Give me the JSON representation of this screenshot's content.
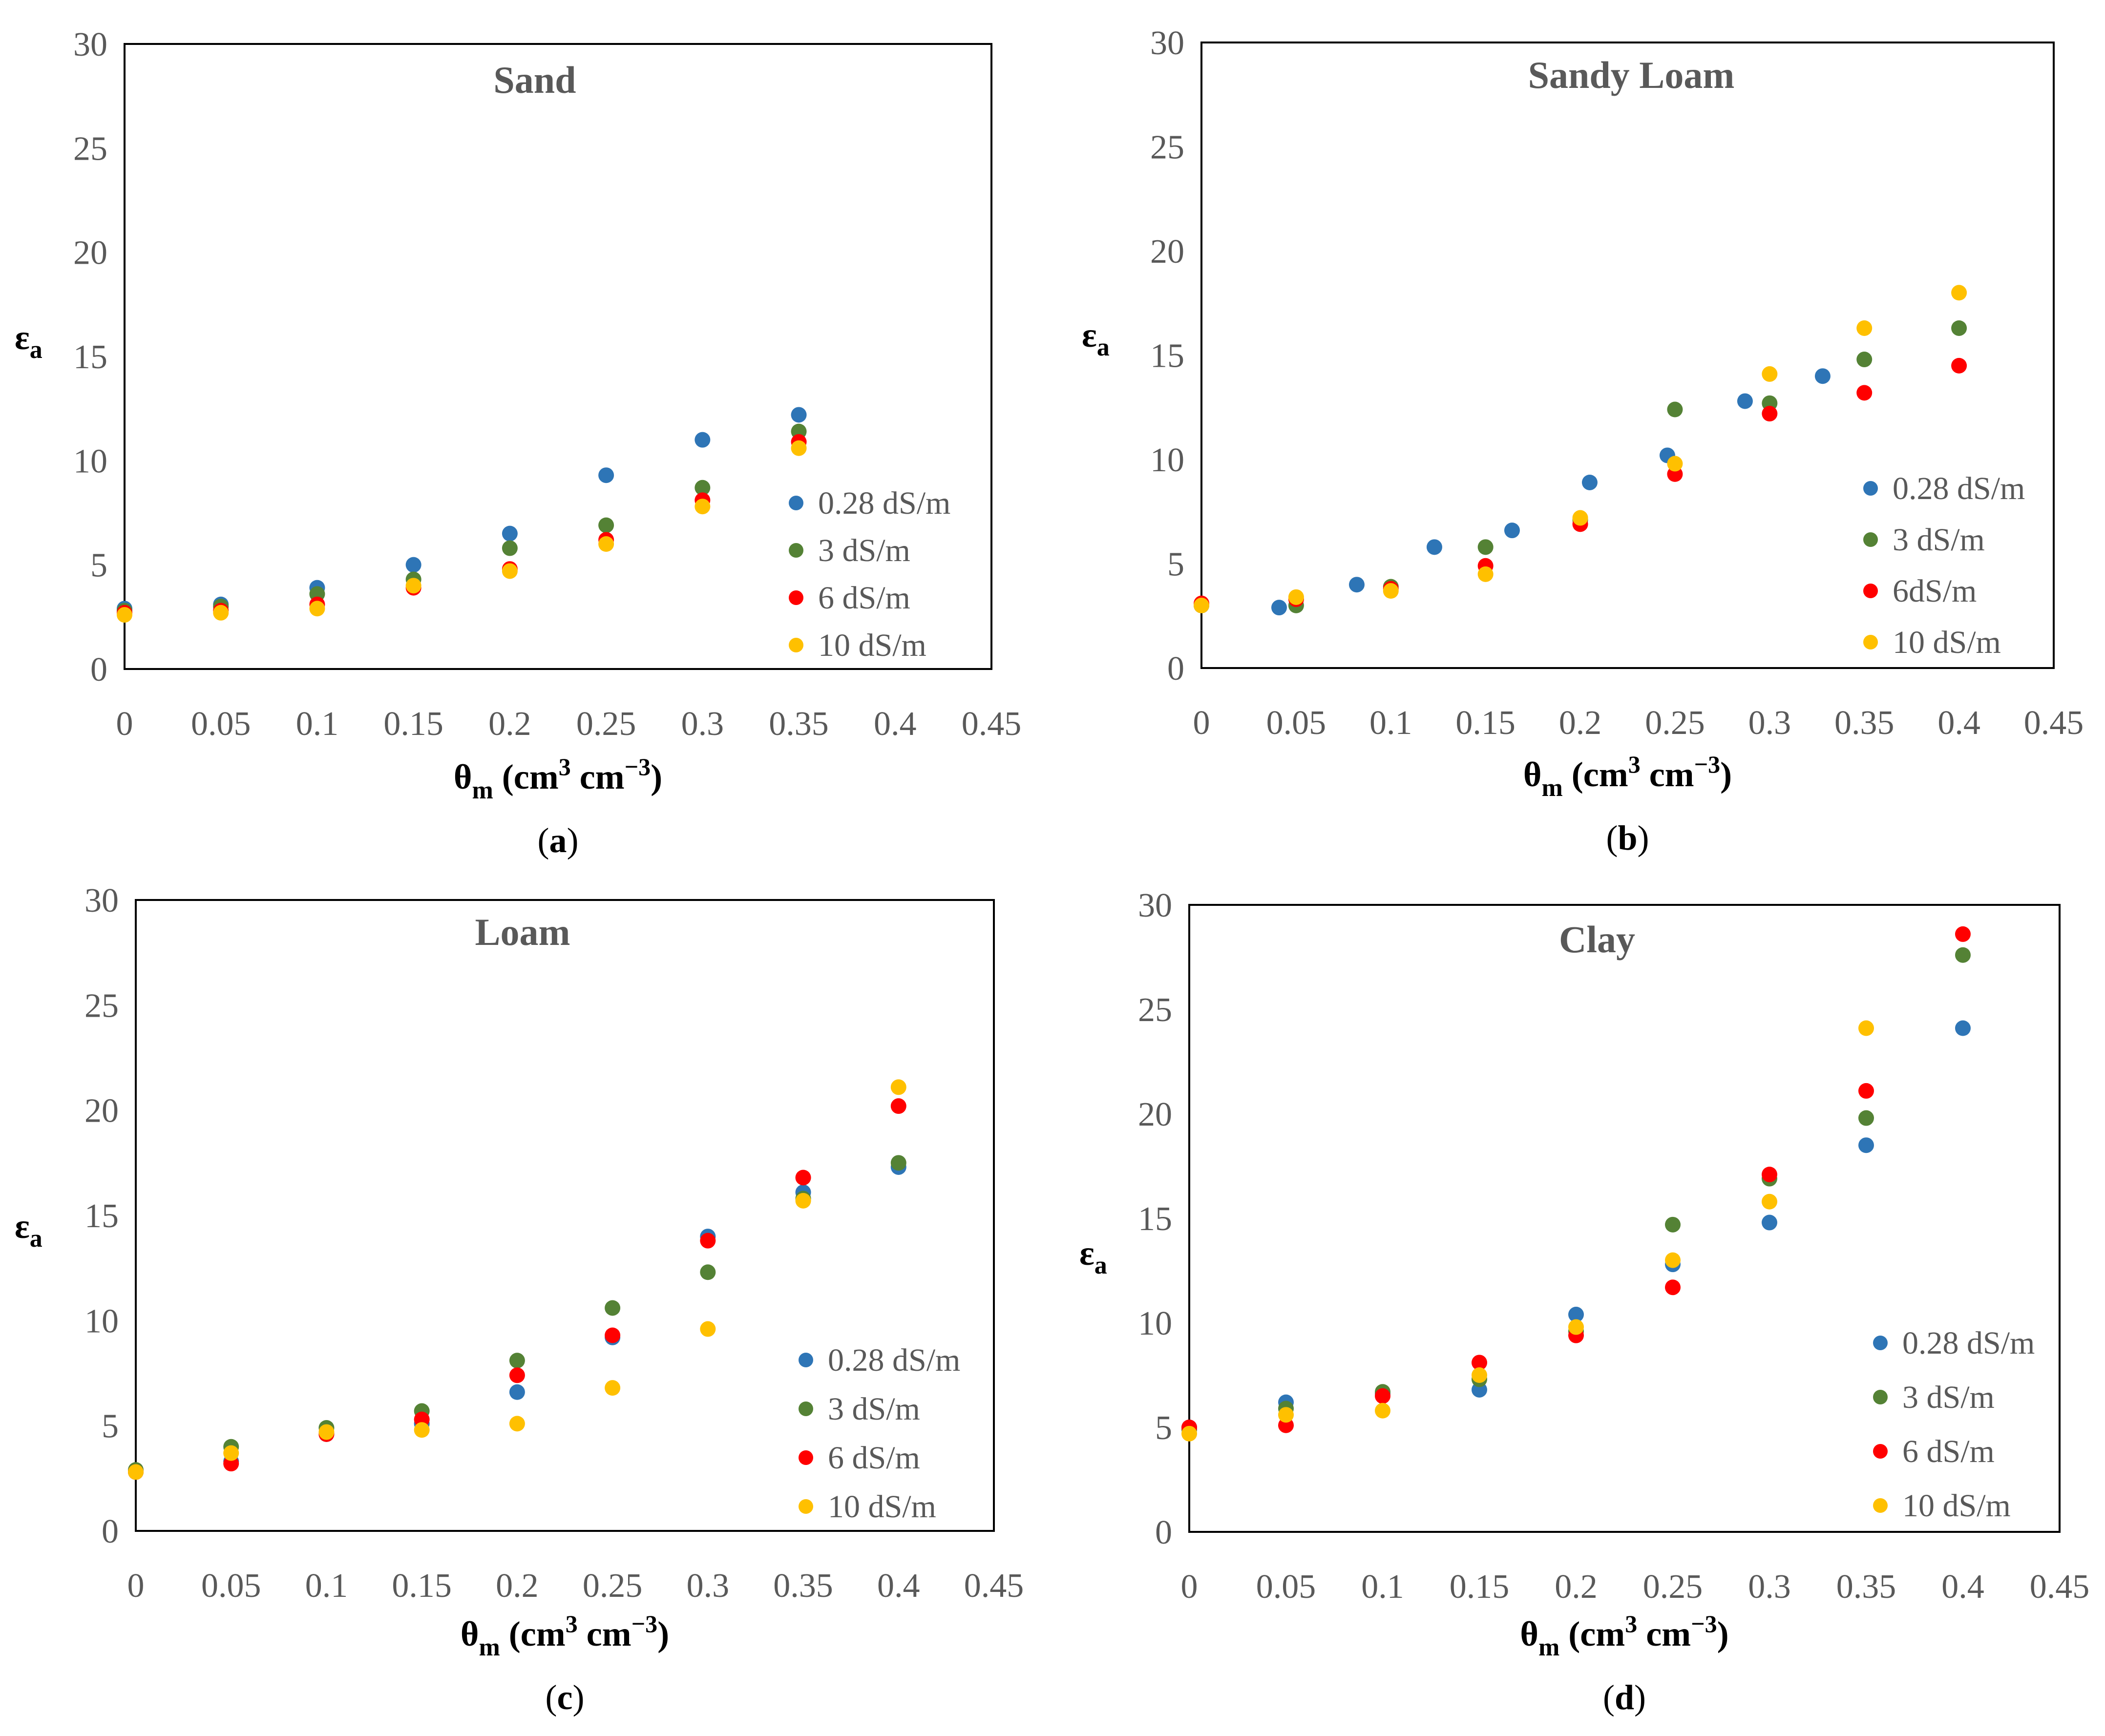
{
  "colors": {
    "0.28 dS/m": "#2e75b6",
    "3 dS/m": "#548235",
    "6 dS/m": "#ff0000",
    "10 dS/m": "#ffc000",
    "plot_border": "#000000",
    "tick_text": "#595959"
  },
  "chart_data": [
    {
      "type": "scatter",
      "panel": "a",
      "title": "Sand",
      "xlabel": {
        "symbol": "θ",
        "sub": "m",
        "unit_open": " (cm",
        "sup1": "3",
        "unit_mid": " cm",
        "sup2": "−3",
        "unit_close": ")"
      },
      "ylabel": {
        "symbol": "ε",
        "sub": "a"
      },
      "xlim": [
        0,
        0.45
      ],
      "ylim": [
        0,
        30
      ],
      "xticks": [
        "0",
        "0.05",
        "0.1",
        "0.15",
        "0.2",
        "0.25",
        "0.3",
        "0.35",
        "0.4",
        "0.45"
      ],
      "yticks": [
        "0",
        "5",
        "10",
        "15",
        "20",
        "25",
        "30"
      ],
      "legend_position": "right",
      "series": [
        {
          "name": "0.28 dS/m",
          "color_key": "0.28 dS/m",
          "points": [
            [
              0,
              2.9
            ],
            [
              0.05,
              3.1
            ],
            [
              0.1,
              3.9
            ],
            [
              0.15,
              5.0
            ],
            [
              0.2,
              6.5
            ],
            [
              0.25,
              9.3
            ],
            [
              0.3,
              11.0
            ],
            [
              0.35,
              12.2
            ]
          ]
        },
        {
          "name": "3 dS/m",
          "color_key": "3 dS/m",
          "points": [
            [
              0,
              2.8
            ],
            [
              0.05,
              3.0
            ],
            [
              0.1,
              3.6
            ],
            [
              0.15,
              4.3
            ],
            [
              0.2,
              5.8
            ],
            [
              0.25,
              6.9
            ],
            [
              0.3,
              8.7
            ],
            [
              0.35,
              11.4
            ]
          ]
        },
        {
          "name": "6 dS/m",
          "color_key": "6 dS/m",
          "points": [
            [
              0,
              2.7
            ],
            [
              0.05,
              2.8
            ],
            [
              0.1,
              3.1
            ],
            [
              0.15,
              3.9
            ],
            [
              0.2,
              4.8
            ],
            [
              0.25,
              6.2
            ],
            [
              0.3,
              8.1
            ],
            [
              0.35,
              10.9
            ]
          ]
        },
        {
          "name": "10 dS/m",
          "color_key": "10 dS/m",
          "points": [
            [
              0,
              2.6
            ],
            [
              0.05,
              2.7
            ],
            [
              0.1,
              2.9
            ],
            [
              0.15,
              4.0
            ],
            [
              0.2,
              4.7
            ],
            [
              0.25,
              6.0
            ],
            [
              0.3,
              7.8
            ],
            [
              0.35,
              10.6
            ]
          ]
        }
      ]
    },
    {
      "type": "scatter",
      "panel": "b",
      "title": "Sandy Loam",
      "xlabel": {
        "symbol": "θ",
        "sub": "m",
        "unit_open": " (cm",
        "sup1": "3",
        "unit_mid": " cm",
        "sup2": "−3",
        "unit_close": ")"
      },
      "ylabel": {
        "symbol": "ε",
        "sub": "a"
      },
      "xlim": [
        0,
        0.45
      ],
      "ylim": [
        0,
        30
      ],
      "xticks": [
        "0",
        "0.05",
        "0.1",
        "0.15",
        "0.2",
        "0.25",
        "0.3",
        "0.35",
        "0.4",
        "0.45"
      ],
      "yticks": [
        "0",
        "5",
        "10",
        "15",
        "20",
        "25",
        "30"
      ],
      "legend_position": "right",
      "series": [
        {
          "name": "0.28 dS/m",
          "color_key": "0.28 dS/m",
          "points": [
            [
              0,
              3.0
            ],
            [
              0.041,
              2.9
            ],
            [
              0.082,
              4.0
            ],
            [
              0.123,
              5.8
            ],
            [
              0.164,
              6.6
            ],
            [
              0.205,
              8.9
            ],
            [
              0.246,
              10.2
            ],
            [
              0.287,
              12.8
            ],
            [
              0.328,
              14.0
            ]
          ]
        },
        {
          "name": "3 dS/m",
          "color_key": "3 dS/m",
          "points": [
            [
              0,
              3.0
            ],
            [
              0.05,
              3.0
            ],
            [
              0.1,
              3.9
            ],
            [
              0.15,
              5.8
            ],
            [
              0.2,
              7.1
            ],
            [
              0.25,
              12.4
            ],
            [
              0.3,
              12.7
            ],
            [
              0.35,
              14.8
            ],
            [
              0.4,
              16.3
            ]
          ]
        },
        {
          "name": "6dS/m",
          "color_key": "6 dS/m",
          "points": [
            [
              0,
              3.1
            ],
            [
              0.05,
              3.3
            ],
            [
              0.1,
              3.8
            ],
            [
              0.15,
              4.9
            ],
            [
              0.2,
              6.9
            ],
            [
              0.25,
              9.3
            ],
            [
              0.3,
              12.2
            ],
            [
              0.35,
              13.2
            ],
            [
              0.4,
              14.5
            ]
          ]
        },
        {
          "name": "10 dS/m",
          "color_key": "10 dS/m",
          "points": [
            [
              0,
              3.0
            ],
            [
              0.05,
              3.4
            ],
            [
              0.1,
              3.7
            ],
            [
              0.15,
              4.5
            ],
            [
              0.2,
              7.2
            ],
            [
              0.25,
              9.8
            ],
            [
              0.3,
              14.1
            ],
            [
              0.35,
              16.3
            ],
            [
              0.4,
              18.0
            ]
          ]
        }
      ]
    },
    {
      "type": "scatter",
      "panel": "c",
      "title": "Loam",
      "xlabel": {
        "symbol": "θ",
        "sub": "m",
        "unit_open": " (cm",
        "sup1": "3",
        "unit_mid": " cm",
        "sup2": "−3",
        "unit_close": ")"
      },
      "ylabel": {
        "symbol": "ε",
        "sub": "a"
      },
      "xlim": [
        0,
        0.45
      ],
      "ylim": [
        0,
        30
      ],
      "xticks": [
        "0",
        "0.05",
        "0.1",
        "0.15",
        "0.2",
        "0.25",
        "0.3",
        "0.35",
        "0.4",
        "0.45"
      ],
      "yticks": [
        "0",
        "5",
        "10",
        "15",
        "20",
        "25",
        "30"
      ],
      "legend_position": "right",
      "series": [
        {
          "name": "0.28 dS/m",
          "color_key": "0.28 dS/m",
          "points": [
            [
              0,
              2.8
            ],
            [
              0.05,
              3.3
            ],
            [
              0.1,
              4.6
            ],
            [
              0.15,
              5.1
            ],
            [
              0.2,
              6.6
            ],
            [
              0.25,
              9.2
            ],
            [
              0.3,
              14.0
            ],
            [
              0.35,
              16.1
            ],
            [
              0.4,
              17.3
            ]
          ]
        },
        {
          "name": "3 dS/m",
          "color_key": "3 dS/m",
          "points": [
            [
              0,
              2.9
            ],
            [
              0.05,
              4.0
            ],
            [
              0.1,
              4.9
            ],
            [
              0.15,
              5.7
            ],
            [
              0.2,
              8.1
            ],
            [
              0.25,
              10.6
            ],
            [
              0.3,
              12.3
            ],
            [
              0.35,
              15.8
            ],
            [
              0.4,
              17.5
            ]
          ]
        },
        {
          "name": "6 dS/m",
          "color_key": "6 dS/m",
          "points": [
            [
              0,
              2.8
            ],
            [
              0.05,
              3.2
            ],
            [
              0.1,
              4.6
            ],
            [
              0.15,
              5.3
            ],
            [
              0.2,
              7.4
            ],
            [
              0.25,
              9.3
            ],
            [
              0.3,
              13.8
            ],
            [
              0.35,
              16.8
            ],
            [
              0.4,
              20.2
            ]
          ]
        },
        {
          "name": "10 dS/m",
          "color_key": "10 dS/m",
          "points": [
            [
              0,
              2.8
            ],
            [
              0.05,
              3.7
            ],
            [
              0.1,
              4.7
            ],
            [
              0.15,
              4.8
            ],
            [
              0.2,
              5.1
            ],
            [
              0.25,
              6.8
            ],
            [
              0.3,
              9.6
            ],
            [
              0.35,
              15.7
            ],
            [
              0.4,
              21.1
            ]
          ]
        }
      ]
    },
    {
      "type": "scatter",
      "panel": "d",
      "title": "Clay",
      "xlabel": {
        "symbol": "θ",
        "sub": "m",
        "unit_open": " (cm",
        "sup1": "3",
        "unit_mid": " cm",
        "sup2": "−3",
        "unit_close": ")"
      },
      "ylabel": {
        "symbol": "ε",
        "sub": "a"
      },
      "xlim": [
        0,
        0.45
      ],
      "ylim": [
        0,
        30
      ],
      "xticks": [
        "0",
        "0.05",
        "0.1",
        "0.15",
        "0.2",
        "0.25",
        "0.3",
        "0.35",
        "0.4",
        "0.45"
      ],
      "yticks": [
        "0",
        "5",
        "10",
        "15",
        "20",
        "25",
        "30"
      ],
      "legend_position": "right",
      "series": [
        {
          "name": "0.28 dS/m",
          "color_key": "0.28 dS/m",
          "points": [
            [
              0,
              5.0
            ],
            [
              0.05,
              6.2
            ],
            [
              0.1,
              6.6
            ],
            [
              0.15,
              6.8
            ],
            [
              0.2,
              10.4
            ],
            [
              0.25,
              12.8
            ],
            [
              0.3,
              14.8
            ],
            [
              0.35,
              18.5
            ],
            [
              0.4,
              24.1
            ]
          ]
        },
        {
          "name": "3 dS/m",
          "color_key": "3 dS/m",
          "points": [
            [
              0,
              4.9
            ],
            [
              0.05,
              5.9
            ],
            [
              0.1,
              6.7
            ],
            [
              0.15,
              7.3
            ],
            [
              0.2,
              9.6
            ],
            [
              0.25,
              14.7
            ],
            [
              0.3,
              16.9
            ],
            [
              0.35,
              19.8
            ],
            [
              0.4,
              27.6
            ]
          ]
        },
        {
          "name": "6 dS/m",
          "color_key": "6 dS/m",
          "points": [
            [
              0,
              5.0
            ],
            [
              0.05,
              5.1
            ],
            [
              0.1,
              6.5
            ],
            [
              0.15,
              8.1
            ],
            [
              0.2,
              9.4
            ],
            [
              0.25,
              11.7
            ],
            [
              0.3,
              17.1
            ],
            [
              0.35,
              21.1
            ],
            [
              0.4,
              28.6
            ]
          ]
        },
        {
          "name": "10 dS/m",
          "color_key": "10 dS/m",
          "points": [
            [
              0,
              4.7
            ],
            [
              0.05,
              5.6
            ],
            [
              0.1,
              5.8
            ],
            [
              0.15,
              7.5
            ],
            [
              0.2,
              9.8
            ],
            [
              0.25,
              13.0
            ],
            [
              0.3,
              15.8
            ],
            [
              0.35,
              24.1
            ]
          ]
        }
      ]
    }
  ]
}
